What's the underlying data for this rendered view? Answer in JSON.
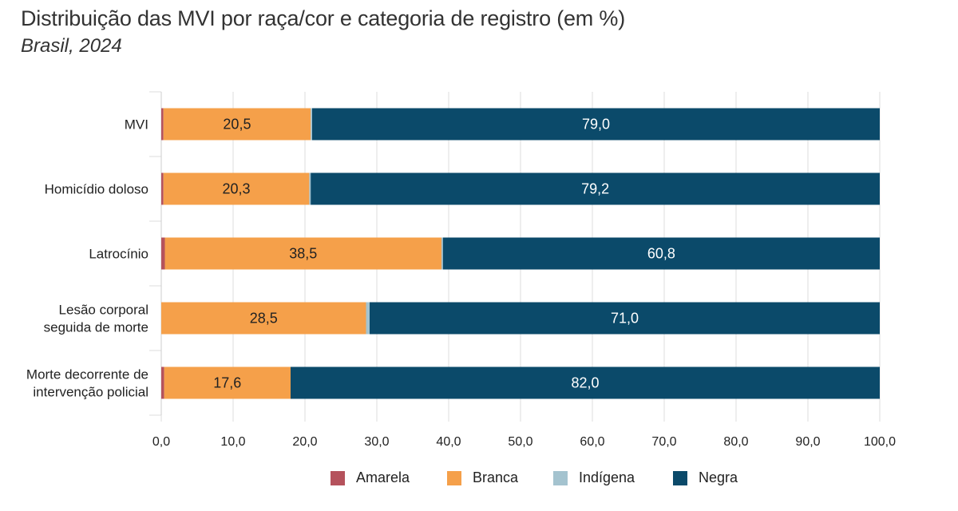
{
  "chart_data": {
    "type": "bar",
    "orientation": "horizontal",
    "stacked": true,
    "title": "Distribuição das MVI por raça/cor e categoria de registro (em %)",
    "subtitle": "Brasil, 2024",
    "categories": [
      [
        "MVI"
      ],
      [
        "Homicídio doloso"
      ],
      [
        "Latrocínio"
      ],
      [
        "Lesão corporal",
        "seguida de morte"
      ],
      [
        "Morte decorrente de",
        "intervenção policial"
      ]
    ],
    "series": [
      {
        "name": "Amarela",
        "color": "#b5525c",
        "values": [
          0.3,
          0.3,
          0.5,
          0.0,
          0.4
        ],
        "labels": [
          "",
          "",
          "",
          "",
          ""
        ]
      },
      {
        "name": "Branca",
        "color": "#f5a04a",
        "values": [
          20.5,
          20.3,
          38.5,
          28.5,
          17.6
        ],
        "labels": [
          "20,5",
          "20,3",
          "38,5",
          "28,5",
          "17,6"
        ]
      },
      {
        "name": "Indígena",
        "color": "#a4c3cf",
        "values": [
          0.2,
          0.2,
          0.2,
          0.5,
          0.0
        ],
        "labels": [
          "",
          "",
          "",
          "",
          ""
        ]
      },
      {
        "name": "Negra",
        "color": "#0b4a6a",
        "values": [
          79.0,
          79.2,
          60.8,
          71.0,
          82.0
        ],
        "labels": [
          "79,0",
          "79,2",
          "60,8",
          "71,0",
          "82,0"
        ]
      }
    ],
    "xlim": [
      0,
      100
    ],
    "xticks": [
      "0,0",
      "10,0",
      "20,0",
      "30,0",
      "40,0",
      "50,0",
      "60,0",
      "70,0",
      "80,0",
      "90,0",
      "100,0"
    ],
    "grid": "vertical",
    "legend": "bottom"
  }
}
